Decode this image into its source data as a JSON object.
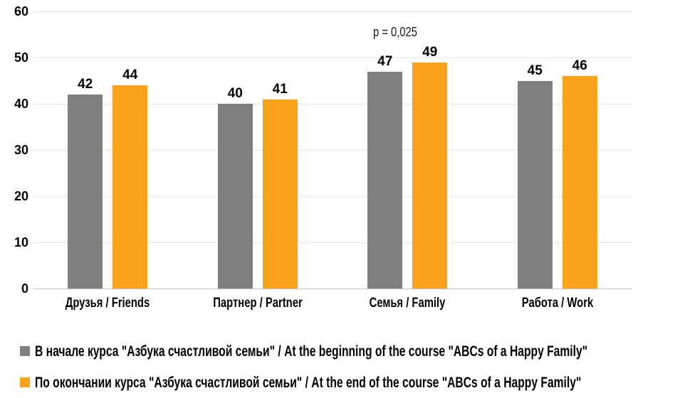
{
  "chart_data": {
    "type": "bar",
    "title": "",
    "xlabel": "",
    "ylabel": "",
    "categories": [
      "Друзья / Friends",
      "Партнер / Partner",
      "Семья / Family",
      "Работа / Work"
    ],
    "series": [
      {
        "name": "В начале курса \"Азбука счастливой семьи\" / At the beginning of the course \"ABCs of a Happy Family\"",
        "color": "#7F7F7F",
        "values": [
          42,
          40,
          47,
          45
        ]
      },
      {
        "name": "По окончании курса \"Азбука счастливой семьи\" / At the end of the course \"ABCs of a Happy Family\"",
        "color": "#FAA21B",
        "values": [
          44,
          41,
          49,
          46
        ]
      }
    ],
    "ylim": [
      0,
      60
    ],
    "yticks": [
      0,
      10,
      20,
      30,
      40,
      50,
      60
    ],
    "grid": true,
    "legend_position": "bottom",
    "annotations": [
      {
        "text": "p = 0,025",
        "category_index": 2
      }
    ]
  }
}
